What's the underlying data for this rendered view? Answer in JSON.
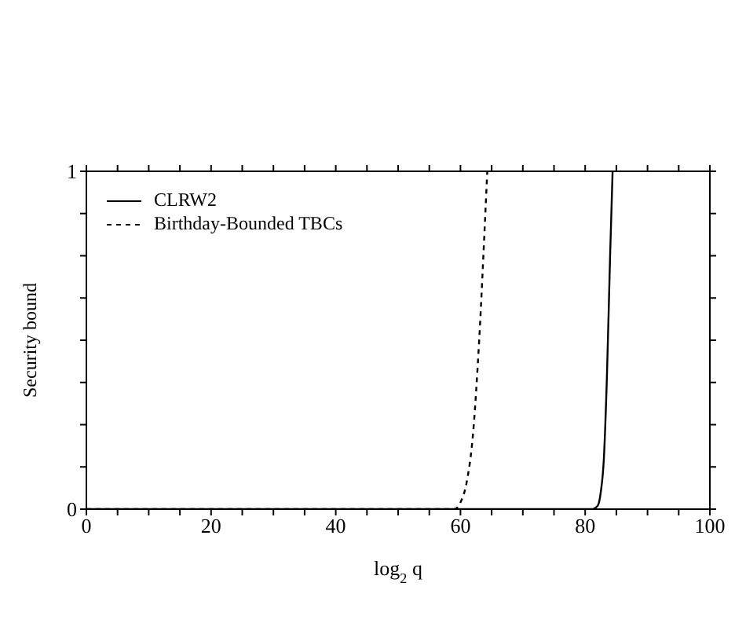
{
  "chart_data": {
    "type": "line",
    "xlabel": "log$_{2}$ q",
    "ylabel": "Security bound",
    "xlim": [
      0,
      100
    ],
    "ylim": [
      0,
      1
    ],
    "xticks": [
      0,
      {
        "value": 5,
        "label": null
      },
      20,
      {
        "value": 10,
        "label": null
      },
      {
        "value": 15,
        "label": null
      },
      {
        "value": 25,
        "label": null
      },
      {
        "value": 30,
        "label": null
      },
      {
        "value": 35,
        "label": null
      },
      40,
      {
        "value": 45,
        "label": null
      },
      {
        "value": 50,
        "label": null
      },
      {
        "value": 55,
        "label": null
      },
      60,
      {
        "value": 65,
        "label": null
      },
      {
        "value": 70,
        "label": null
      },
      {
        "value": 75,
        "label": null
      },
      80,
      {
        "value": 85,
        "label": null
      },
      {
        "value": 90,
        "label": null
      },
      {
        "value": 95,
        "label": null
      },
      100
    ],
    "yticks": [
      0,
      {
        "value": 0.125,
        "label": null
      },
      {
        "value": 0.25,
        "label": null
      },
      {
        "value": 0.375,
        "label": null
      },
      {
        "value": 0.5,
        "label": null
      },
      {
        "value": 0.625,
        "label": null
      },
      {
        "value": 0.75,
        "label": null
      },
      {
        "value": 0.875,
        "label": null
      },
      1
    ],
    "legend": "top left",
    "marker": "none",
    "series": [
      {
        "name": "CLRW2",
        "color": "#000000",
        "line_style": "solid",
        "x": [
          0,
          81,
          82,
          82.5,
          83,
          83.5,
          84,
          84.4
        ],
        "values": [
          0,
          0,
          0.01,
          0.05,
          0.15,
          0.4,
          0.75,
          1
        ]
      },
      {
        "name": "Birthday-Bounded TBCs",
        "color": "#000000",
        "line_style": "dashed",
        "x": [
          0,
          59,
          60,
          61,
          62,
          63,
          64,
          64.3
        ],
        "values": [
          0,
          0,
          0.02,
          0.08,
          0.22,
          0.5,
          0.88,
          1
        ]
      }
    ]
  }
}
